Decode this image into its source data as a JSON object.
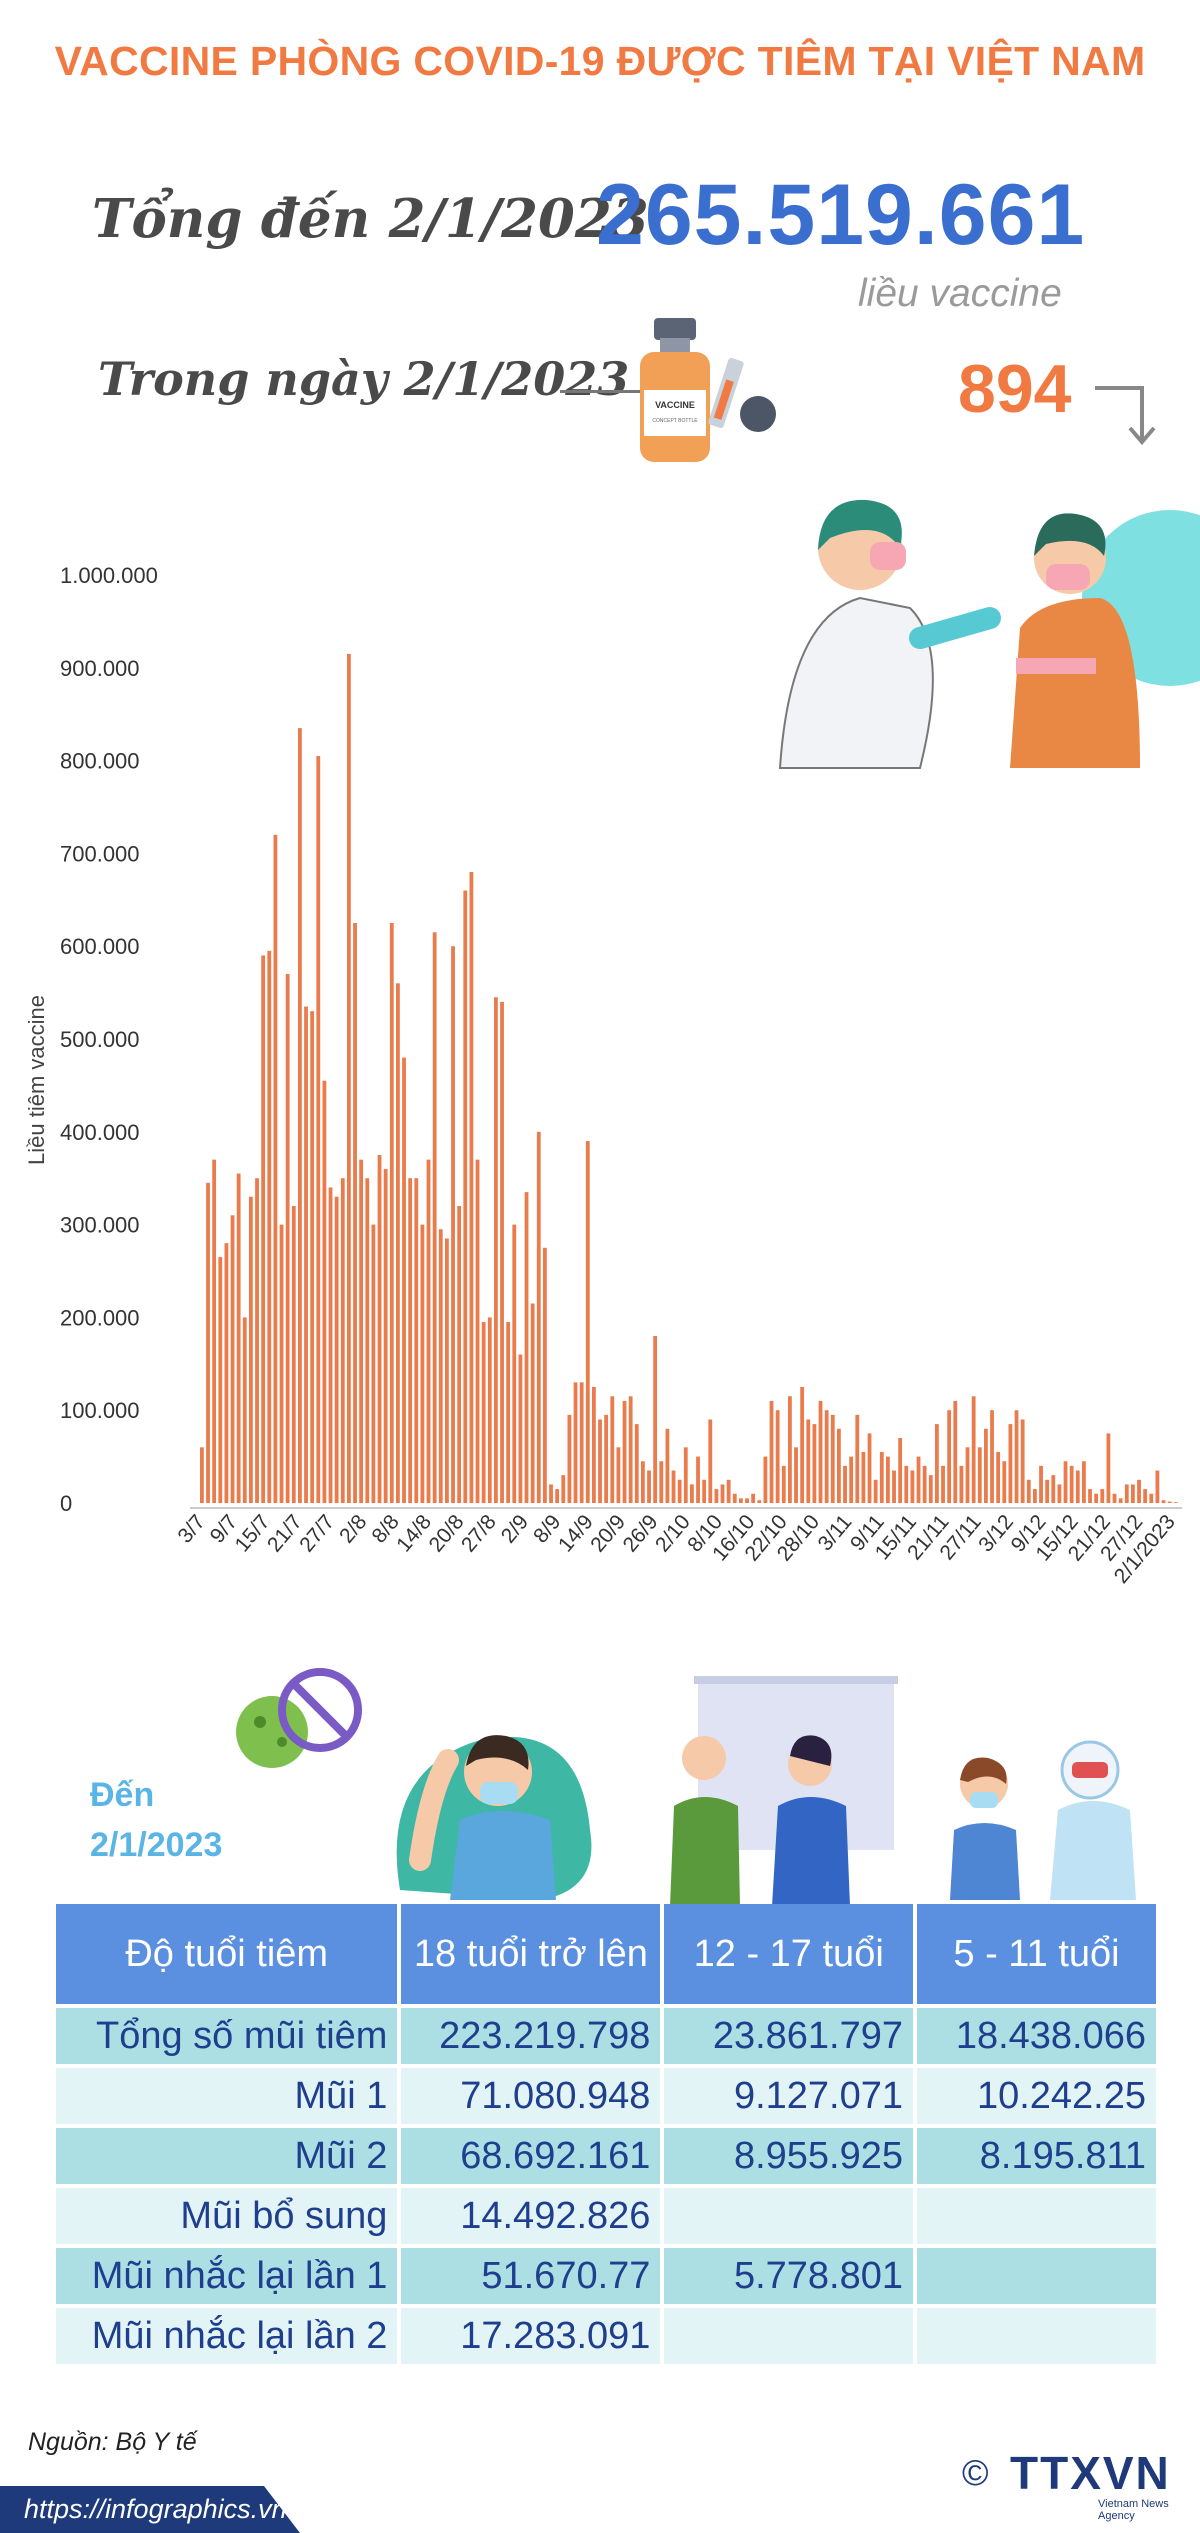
{
  "header": {
    "title": "VACCINE PHÒNG COVID-19 ĐƯỢC TIÊM TẠI VIỆT NAM",
    "total_label": "Tổng đến 2/1/2023",
    "total_value": "265.519.661",
    "total_unit": "liều vaccine",
    "day_label": "Trong ngày 2/1/2023",
    "day_value": "894",
    "vial_label": "VACCINE",
    "vial_sublabel": "CONCEPT BOTTLE"
  },
  "colors": {
    "title": "#f07a42",
    "total": "#3a6fcf",
    "bar": "#e97b4c",
    "table_header": "#5b8fe0",
    "table_band": "#abdfe4",
    "table_plain": "#e2f4f6",
    "footer": "#1e3a7a"
  },
  "chart_data": {
    "type": "bar",
    "ylabel": "Liều tiêm vaccine",
    "ylim": [
      0,
      1000000
    ],
    "yticks": [
      "1.000.000",
      "900.000",
      "800.000",
      "700.000",
      "600.000",
      "500.000",
      "400.000",
      "300.000",
      "200.000",
      "100.000",
      "0"
    ],
    "xtick_labels": [
      "3/7",
      "9/7",
      "15/7",
      "21/7",
      "27/7",
      "2/8",
      "8/8",
      "14/8",
      "20/8",
      "27/8",
      "2/9",
      "8/9",
      "14/9",
      "20/9",
      "26/9",
      "2/10",
      "8/10",
      "16/10",
      "22/10",
      "28/10",
      "3/11",
      "9/11",
      "15/11",
      "21/11",
      "27/11",
      "3/12",
      "9/12",
      "15/12",
      "21/12",
      "27/12",
      "2/1/2023"
    ],
    "values": [
      60000,
      345000,
      370000,
      265000,
      280000,
      310000,
      355000,
      200000,
      330000,
      350000,
      590000,
      595000,
      720000,
      300000,
      570000,
      320000,
      835000,
      535000,
      530000,
      805000,
      455000,
      340000,
      330000,
      350000,
      915000,
      625000,
      370000,
      350000,
      300000,
      375000,
      360000,
      625000,
      560000,
      480000,
      350000,
      350000,
      300000,
      370000,
      615000,
      295000,
      285000,
      600000,
      320000,
      660000,
      680000,
      370000,
      195000,
      200000,
      545000,
      540000,
      195000,
      300000,
      160000,
      335000,
      215000,
      400000,
      275000,
      20000,
      15000,
      30000,
      95000,
      130000,
      130000,
      390000,
      125000,
      90000,
      95000,
      115000,
      60000,
      110000,
      115000,
      85000,
      45000,
      35000,
      180000,
      45000,
      80000,
      35000,
      25000,
      60000,
      20000,
      50000,
      25000,
      90000,
      15000,
      20000,
      25000,
      10000,
      5000,
      5000,
      10000,
      3000,
      50000,
      110000,
      100000,
      40000,
      115000,
      60000,
      125000,
      90000,
      85000,
      110000,
      100000,
      95000,
      80000,
      40000,
      50000,
      95000,
      55000,
      75000,
      25000,
      55000,
      50000,
      35000,
      70000,
      40000,
      35000,
      50000,
      40000,
      30000,
      85000,
      40000,
      100000,
      110000,
      40000,
      60000,
      115000,
      60000,
      80000,
      100000,
      55000,
      45000,
      85000,
      100000,
      90000,
      25000,
      15000,
      40000,
      25000,
      30000,
      20000,
      45000,
      40000,
      35000,
      45000,
      15000,
      10000,
      15000,
      75000,
      10000,
      5000,
      20000,
      20000,
      25000,
      15000,
      10000,
      35000,
      3000,
      1500,
      894
    ]
  },
  "table": {
    "since_label": "Đến 2/1/2023",
    "headers": [
      "Độ tuổi tiêm",
      "18 tuổi trở lên",
      "12 - 17 tuổi",
      "5 - 11 tuổi"
    ],
    "rows": [
      {
        "label": "Tổng số mũi tiêm",
        "cells": [
          "223.219.798",
          "23.861.797",
          "18.438.066"
        ]
      },
      {
        "label": "Mũi 1",
        "cells": [
          "71.080.948",
          "9.127.071",
          "10.242.25"
        ]
      },
      {
        "label": "Mũi 2",
        "cells": [
          "68.692.161",
          "8.955.925",
          "8.195.811"
        ]
      },
      {
        "label": "Mũi bổ sung",
        "cells": [
          "14.492.826",
          "",
          ""
        ]
      },
      {
        "label": "Mũi nhắc lại lần 1",
        "cells": [
          "51.670.77",
          "5.778.801",
          ""
        ]
      },
      {
        "label": "Mũi nhắc lại lần 2",
        "cells": [
          "17.283.091",
          "",
          ""
        ]
      }
    ]
  },
  "footer": {
    "source": "Nguồn: Bộ Y tế",
    "url": "https://infographics.vn",
    "copyright": "©",
    "logo_text": "TTXVN",
    "logo_sub": "Vietnam News Agency"
  }
}
